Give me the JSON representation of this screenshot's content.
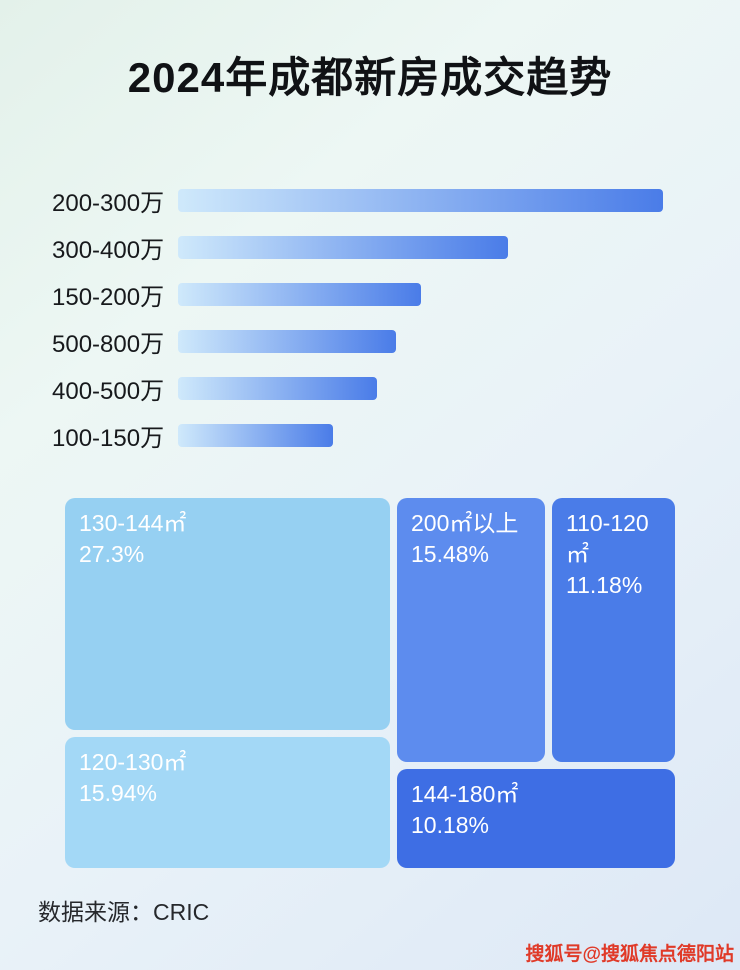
{
  "title": "2024年成都新房成交趋势",
  "chart_data": [
    {
      "type": "bar",
      "orientation": "horizontal",
      "title": "价格段成交（条形长度为相对比例，无数值标注）",
      "categories": [
        "200-300万",
        "300-400万",
        "150-200万",
        "500-800万",
        "400-500万",
        "100-150万"
      ],
      "values": [
        100,
        68,
        50,
        45,
        41,
        32
      ],
      "values_unit": "relative",
      "gradient": [
        "#cfe9fb",
        "#4a7ce8"
      ],
      "grid": false,
      "legend": false
    },
    {
      "type": "treemap",
      "title": "面积段成交占比",
      "items": [
        {
          "label": "130-144㎡",
          "value": "27.3%",
          "color": "#96d0f2"
        },
        {
          "label": "200㎡以上",
          "value": "15.48%",
          "color": "#5d8cee"
        },
        {
          "label": "110-120㎡",
          "value": "11.18%",
          "color": "#4a7ce8"
        },
        {
          "label": "120-130㎡",
          "value": "15.94%",
          "color": "#a3d8f6"
        },
        {
          "label": "144-180㎡",
          "value": "10.18%",
          "color": "#3e6ee4"
        }
      ]
    }
  ],
  "footer": {
    "source": "数据来源：CRIC"
  },
  "watermark": "搜狐号@搜狐焦点德阳站",
  "colors": {
    "title_text": "#101215",
    "bar_gradient_start": "#cfe9fb",
    "bar_gradient_end": "#4a7ce8",
    "watermark_red": "#e03a28"
  }
}
